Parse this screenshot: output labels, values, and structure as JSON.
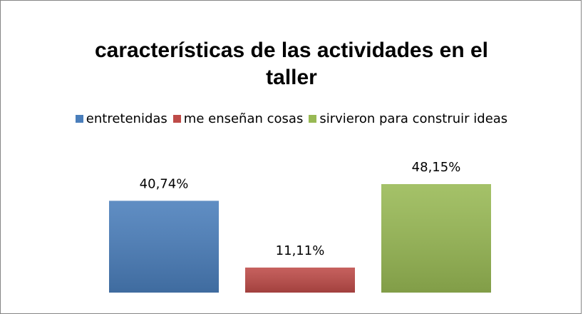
{
  "chart_data": {
    "type": "bar",
    "title": "características de las actividades en el taller",
    "legend": "top",
    "series": [
      {
        "name": "entretenidas",
        "color": "#4a7ebb",
        "values": [
          40.74
        ],
        "value_labels": [
          "40,74%"
        ]
      },
      {
        "name": "me enseñan cosas",
        "color": "#be4b48",
        "values": [
          11.11
        ],
        "value_labels": [
          "11,11%"
        ]
      },
      {
        "name": "sirvieron para construir ideas",
        "color": "#98b954",
        "values": [
          48.15
        ],
        "value_labels": [
          "48,15%"
        ]
      }
    ]
  }
}
